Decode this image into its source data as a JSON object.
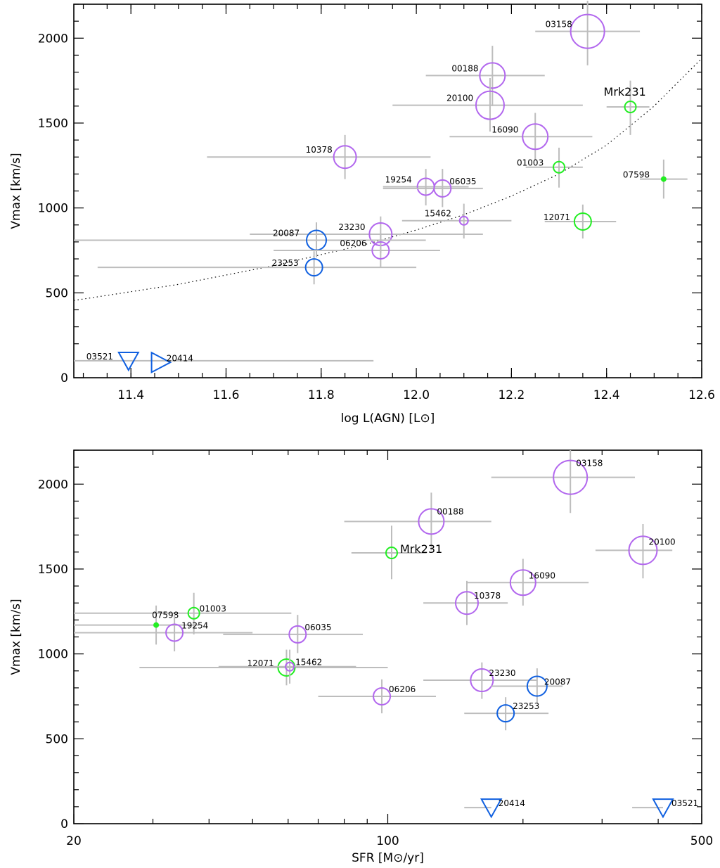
{
  "chart_data": [
    {
      "type": "scatter",
      "xlabel": "log L(AGN) [L⊙]",
      "ylabel": "Vmax [km/s]",
      "xlim": [
        11.28,
        12.6
      ],
      "ylim": [
        0,
        2200
      ],
      "xscale": "linear",
      "xticks": [
        "11.4",
        "11.6",
        "11.8",
        "12.0",
        "12.2",
        "12.4",
        "12.6"
      ],
      "yticks": [
        "0",
        "500",
        "1000",
        "1500",
        "2000"
      ],
      "curve": {
        "style": "dotted",
        "points": [
          [
            11.28,
            455
          ],
          [
            11.5,
            550
          ],
          [
            11.7,
            660
          ],
          [
            11.9,
            790
          ],
          [
            12.0,
            870
          ],
          [
            12.1,
            960
          ],
          [
            12.2,
            1070
          ],
          [
            12.3,
            1200
          ],
          [
            12.4,
            1370
          ],
          [
            12.5,
            1600
          ],
          [
            12.6,
            1880
          ]
        ]
      },
      "points": [
        {
          "label": "03158",
          "x": 12.36,
          "y": 2040,
          "xerr": [
            12.25,
            12.47
          ],
          "yerr": [
            1840,
            2220
          ],
          "marker": "circle",
          "color": "#b267ee",
          "size": 24
        },
        {
          "label": "00188",
          "x": 12.16,
          "y": 1780,
          "xerr": [
            12.02,
            12.27
          ],
          "yerr": [
            1600,
            1955
          ],
          "marker": "circle",
          "color": "#b267ee",
          "size": 18
        },
        {
          "label": "20100",
          "x": 12.155,
          "y": 1605,
          "xerr": [
            11.95,
            12.35
          ],
          "yerr": [
            1450,
            1765
          ],
          "marker": "circle",
          "color": "#b267ee",
          "size": 20
        },
        {
          "label": "Mrk231",
          "x": 12.45,
          "y": 1595,
          "xerr": [
            12.4,
            12.49
          ],
          "yerr": [
            1430,
            1750
          ],
          "marker": "circle",
          "color": "#22ee22",
          "size": 8,
          "big": true
        },
        {
          "label": "16090",
          "x": 12.25,
          "y": 1420,
          "xerr": [
            12.07,
            12.37
          ],
          "yerr": [
            1280,
            1560
          ],
          "marker": "circle",
          "color": "#b267ee",
          "size": 18
        },
        {
          "label": "10378",
          "x": 11.85,
          "y": 1300,
          "xerr": [
            11.56,
            12.03
          ],
          "yerr": [
            1170,
            1430
          ],
          "marker": "circle",
          "color": "#b267ee",
          "size": 16
        },
        {
          "label": "01003",
          "x": 12.3,
          "y": 1240,
          "xerr": [
            12.23,
            12.35
          ],
          "yerr": [
            1120,
            1355
          ],
          "marker": "circle",
          "color": "#22ee22",
          "size": 8
        },
        {
          "label": "07598",
          "x": 12.52,
          "y": 1170,
          "xerr": [
            12.47,
            12.57
          ],
          "yerr": [
            1055,
            1285
          ],
          "marker": "circle",
          "color": "#22ee22",
          "size": 3
        },
        {
          "label": "19254",
          "x": 12.02,
          "y": 1125,
          "xerr": [
            11.93,
            12.11
          ],
          "yerr": [
            1015,
            1230
          ],
          "marker": "circle",
          "color": "#b267ee",
          "size": 12
        },
        {
          "label": "06035",
          "x": 12.055,
          "y": 1115,
          "xerr": [
            11.93,
            12.14
          ],
          "yerr": [
            1005,
            1230
          ],
          "marker": "circle",
          "color": "#b267ee",
          "size": 12
        },
        {
          "label": "15462",
          "x": 12.1,
          "y": 925,
          "xerr": [
            11.97,
            12.2
          ],
          "yerr": [
            820,
            1025
          ],
          "marker": "circle",
          "color": "#b267ee",
          "size": 6
        },
        {
          "label": "12071",
          "x": 12.35,
          "y": 920,
          "xerr": [
            12.27,
            12.42
          ],
          "yerr": [
            820,
            1020
          ],
          "marker": "circle",
          "color": "#22ee22",
          "size": 12
        },
        {
          "label": "23230",
          "x": 11.925,
          "y": 845,
          "xerr": [
            11.65,
            12.14
          ],
          "yerr": [
            735,
            950
          ],
          "marker": "circle",
          "color": "#b267ee",
          "size": 16
        },
        {
          "label": "20087",
          "x": 11.79,
          "y": 810,
          "xerr": [
            11.28,
            12.02
          ],
          "yerr": [
            710,
            915
          ],
          "marker": "circle",
          "color": "#1060e0",
          "size": 14
        },
        {
          "label": "06206",
          "x": 11.925,
          "y": 750,
          "xerr": [
            11.7,
            12.05
          ],
          "yerr": [
            650,
            850
          ],
          "marker": "circle",
          "color": "#b267ee",
          "size": 12
        },
        {
          "label": "23253",
          "x": 11.785,
          "y": 650,
          "xerr": [
            11.33,
            12.0
          ],
          "yerr": [
            550,
            745
          ],
          "marker": "circle",
          "color": "#1060e0",
          "size": 12
        },
        {
          "label": "03521",
          "x": 11.395,
          "y": 100,
          "xerr": [
            11.28,
            11.91
          ],
          "yerr": [
            100,
            100
          ],
          "marker": "triangle-down",
          "color": "#1060e0",
          "size": 14
        },
        {
          "label": "20414",
          "x": 11.46,
          "y": 90,
          "xerr": [
            11.46,
            11.46
          ],
          "yerr": [
            90,
            90
          ],
          "marker": "triangle-right",
          "color": "#1060e0",
          "size": 14
        }
      ]
    },
    {
      "type": "scatter",
      "xlabel": "SFR [M⊙/yr]",
      "ylabel": "Vmax [km/s]",
      "xlim": [
        20,
        500
      ],
      "ylim": [
        0,
        2200
      ],
      "xscale": "log",
      "xticks": [
        "20",
        "100",
        "500"
      ],
      "yticks": [
        "0",
        "500",
        "1000",
        "1500",
        "2000"
      ],
      "points": [
        {
          "label": "03158",
          "x": 255,
          "y": 2040,
          "xerr": [
            170,
            355
          ],
          "yerr": [
            1830,
            2200
          ],
          "marker": "circle",
          "color": "#b267ee",
          "size": 24
        },
        {
          "label": "00188",
          "x": 125,
          "y": 1780,
          "xerr": [
            80,
            170
          ],
          "yerr": [
            1610,
            1950
          ],
          "marker": "circle",
          "color": "#b267ee",
          "size": 18
        },
        {
          "label": "20100",
          "x": 370,
          "y": 1610,
          "xerr": [
            290,
            430
          ],
          "yerr": [
            1445,
            1765
          ],
          "marker": "circle",
          "color": "#b267ee",
          "size": 20
        },
        {
          "label": "Mrk231",
          "x": 102,
          "y": 1595,
          "xerr": [
            83,
            122
          ],
          "yerr": [
            1440,
            1755
          ],
          "marker": "circle",
          "color": "#22ee22",
          "size": 8,
          "big": true
        },
        {
          "label": "16090",
          "x": 200,
          "y": 1420,
          "xerr": [
            150,
            280
          ],
          "yerr": [
            1285,
            1560
          ],
          "marker": "circle",
          "color": "#b267ee",
          "size": 18
        },
        {
          "label": "10378",
          "x": 150,
          "y": 1300,
          "xerr": [
            120,
            185
          ],
          "yerr": [
            1170,
            1430
          ],
          "marker": "circle",
          "color": "#b267ee",
          "size": 16
        },
        {
          "label": "01003",
          "x": 37,
          "y": 1240,
          "xerr": [
            20,
            61
          ],
          "yerr": [
            1115,
            1360
          ],
          "marker": "circle",
          "color": "#22ee22",
          "size": 8
        },
        {
          "label": "07598",
          "x": 30.5,
          "y": 1170,
          "xerr": [
            20,
            38
          ],
          "yerr": [
            1055,
            1285
          ],
          "marker": "circle",
          "color": "#22ee22",
          "size": 3
        },
        {
          "label": "19254",
          "x": 33.5,
          "y": 1125,
          "xerr": [
            20,
            50
          ],
          "yerr": [
            1015,
            1230
          ],
          "marker": "circle",
          "color": "#b267ee",
          "size": 12
        },
        {
          "label": "06035",
          "x": 63,
          "y": 1115,
          "xerr": [
            43,
            88
          ],
          "yerr": [
            1005,
            1230
          ],
          "marker": "circle",
          "color": "#b267ee",
          "size": 12
        },
        {
          "label": "12071",
          "x": 59.5,
          "y": 920,
          "xerr": [
            28,
            100
          ],
          "yerr": [
            815,
            1025
          ],
          "marker": "circle",
          "color": "#22ee22",
          "size": 12
        },
        {
          "label": "15462",
          "x": 60.5,
          "y": 925,
          "xerr": [
            42,
            85
          ],
          "yerr": [
            825,
            1025
          ],
          "marker": "circle",
          "color": "#b267ee",
          "size": 6
        },
        {
          "label": "23230",
          "x": 162,
          "y": 845,
          "xerr": [
            120,
            215
          ],
          "yerr": [
            735,
            950
          ],
          "marker": "circle",
          "color": "#b267ee",
          "size": 16
        },
        {
          "label": "20087",
          "x": 215,
          "y": 810,
          "xerr": [
            170,
            245
          ],
          "yerr": [
            710,
            915
          ],
          "marker": "circle",
          "color": "#1060e0",
          "size": 14
        },
        {
          "label": "06206",
          "x": 97,
          "y": 750,
          "xerr": [
            70,
            128
          ],
          "yerr": [
            650,
            850
          ],
          "marker": "circle",
          "color": "#b267ee",
          "size": 12
        },
        {
          "label": "23253",
          "x": 183,
          "y": 650,
          "xerr": [
            148,
            228
          ],
          "yerr": [
            550,
            745
          ],
          "marker": "circle",
          "color": "#1060e0",
          "size": 12
        },
        {
          "label": "20414",
          "x": 170,
          "y": 95,
          "xerr": [
            148,
            170
          ],
          "yerr": [
            95,
            95
          ],
          "marker": "triangle-down",
          "color": "#1060e0",
          "size": 14
        },
        {
          "label": "03521",
          "x": 410,
          "y": 95,
          "xerr": [
            350,
            410
          ],
          "yerr": [
            95,
            95
          ],
          "marker": "triangle-down",
          "color": "#1060e0",
          "size": 14
        }
      ]
    }
  ]
}
